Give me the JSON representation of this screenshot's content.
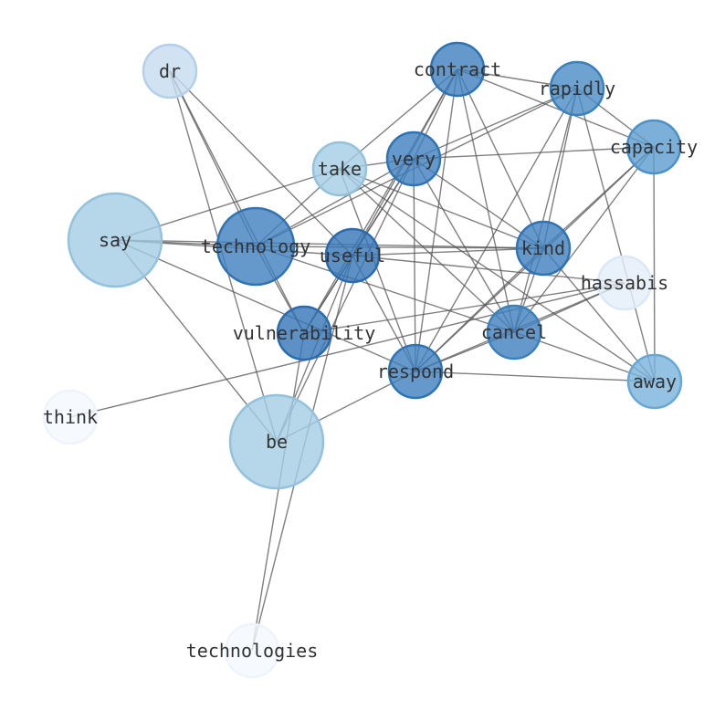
{
  "nodes": [
    {
      "id": "dr",
      "label": "dr",
      "fill": "#c6dbef",
      "stroke": "#b4cfe9",
      "size": "small"
    },
    {
      "id": "contract",
      "label": "contract",
      "fill": "#3f7fbf",
      "stroke": "#2f73b5",
      "size": "small"
    },
    {
      "id": "rapidly",
      "label": "rapidly",
      "fill": "#4a8cc6",
      "stroke": "#3a80bf",
      "size": "small"
    },
    {
      "id": "capacity",
      "label": "capacity",
      "fill": "#5d9cd0",
      "stroke": "#4b90c8",
      "size": "small"
    },
    {
      "id": "take",
      "label": "take",
      "fill": "#a3cde3",
      "stroke": "#93c2dc",
      "size": "small"
    },
    {
      "id": "very",
      "label": "very",
      "fill": "#3f7fbf",
      "stroke": "#2f73b5",
      "size": "small"
    },
    {
      "id": "say",
      "label": "say",
      "fill": "#a3cde3",
      "stroke": "#93c2dc",
      "size": "large"
    },
    {
      "id": "technology",
      "label": "technology",
      "fill": "#3f7fbf",
      "stroke": "#2f73b5",
      "size": "medium"
    },
    {
      "id": "useful",
      "label": "useful",
      "fill": "#3476b8",
      "stroke": "#2a6aae",
      "size": "small"
    },
    {
      "id": "kind",
      "label": "kind",
      "fill": "#3f7fbf",
      "stroke": "#2f73b5",
      "size": "small"
    },
    {
      "id": "hassabis",
      "label": "hassabis",
      "fill": "#e4eef9",
      "stroke": "#dbe8f6",
      "size": "small"
    },
    {
      "id": "vulnerability",
      "label": "vulnerability",
      "fill": "#3476b8",
      "stroke": "#2a6aae",
      "size": "small"
    },
    {
      "id": "cancel",
      "label": "cancel",
      "fill": "#3f7fbf",
      "stroke": "#3a80bf",
      "size": "small"
    },
    {
      "id": "respond",
      "label": "respond",
      "fill": "#3f7fbf",
      "stroke": "#2f73b5",
      "size": "small"
    },
    {
      "id": "away",
      "label": "away",
      "fill": "#79b3dc",
      "stroke": "#67a7d6",
      "size": "small"
    },
    {
      "id": "think",
      "label": "think",
      "fill": "#f4f8fd",
      "stroke": "#eef4fb",
      "size": "small"
    },
    {
      "id": "be",
      "label": "be",
      "fill": "#a3cde3",
      "stroke": "#93c2dc",
      "size": "large"
    },
    {
      "id": "technologies",
      "label": "technologies",
      "fill": "#f4f8fd",
      "stroke": "#eef4fb",
      "size": "small"
    }
  ],
  "edges": [
    [
      "dr",
      "technology"
    ],
    [
      "dr",
      "vulnerability"
    ],
    [
      "dr",
      "useful"
    ],
    [
      "dr",
      "be"
    ],
    [
      "say",
      "technology"
    ],
    [
      "say",
      "useful"
    ],
    [
      "say",
      "kind"
    ],
    [
      "say",
      "take"
    ],
    [
      "say",
      "respond"
    ],
    [
      "say",
      "be"
    ],
    [
      "think",
      "hassabis"
    ],
    [
      "technologies",
      "useful"
    ],
    [
      "technologies",
      "vulnerability"
    ],
    [
      "be",
      "respond"
    ],
    [
      "be",
      "very"
    ],
    [
      "be",
      "useful"
    ],
    [
      "technology",
      "very"
    ],
    [
      "technology",
      "take"
    ],
    [
      "technology",
      "cancel"
    ],
    [
      "technology",
      "kind"
    ],
    [
      "technology",
      "vulnerability"
    ],
    [
      "technology",
      "rapidly"
    ],
    [
      "contract",
      "rapidly"
    ],
    [
      "contract",
      "capacity"
    ],
    [
      "contract",
      "very"
    ],
    [
      "contract",
      "useful"
    ],
    [
      "contract",
      "vulnerability"
    ],
    [
      "contract",
      "respond"
    ],
    [
      "contract",
      "cancel"
    ],
    [
      "contract",
      "kind"
    ],
    [
      "contract",
      "take"
    ],
    [
      "rapidly",
      "very"
    ],
    [
      "rapidly",
      "kind"
    ],
    [
      "rapidly",
      "cancel"
    ],
    [
      "rapidly",
      "respond"
    ],
    [
      "rapidly",
      "away"
    ],
    [
      "rapidly",
      "capacity"
    ],
    [
      "capacity",
      "very"
    ],
    [
      "capacity",
      "kind"
    ],
    [
      "capacity",
      "respond"
    ],
    [
      "capacity",
      "cancel"
    ],
    [
      "capacity",
      "away"
    ],
    [
      "very",
      "respond"
    ],
    [
      "very",
      "cancel"
    ],
    [
      "very",
      "kind"
    ],
    [
      "very",
      "useful"
    ],
    [
      "very",
      "vulnerability"
    ],
    [
      "very",
      "take"
    ],
    [
      "take",
      "kind"
    ],
    [
      "take",
      "cancel"
    ],
    [
      "take",
      "away"
    ],
    [
      "take",
      "respond"
    ],
    [
      "useful",
      "kind"
    ],
    [
      "useful",
      "hassabis"
    ],
    [
      "useful",
      "respond"
    ],
    [
      "useful",
      "vulnerability"
    ],
    [
      "kind",
      "cancel"
    ],
    [
      "kind",
      "respond"
    ],
    [
      "kind",
      "away"
    ],
    [
      "cancel",
      "away"
    ],
    [
      "cancel",
      "respond"
    ],
    [
      "cancel",
      "hassabis"
    ],
    [
      "respond",
      "away"
    ],
    [
      "respond",
      "hassabis"
    ],
    [
      "vulnerability",
      "hassabis"
    ]
  ]
}
